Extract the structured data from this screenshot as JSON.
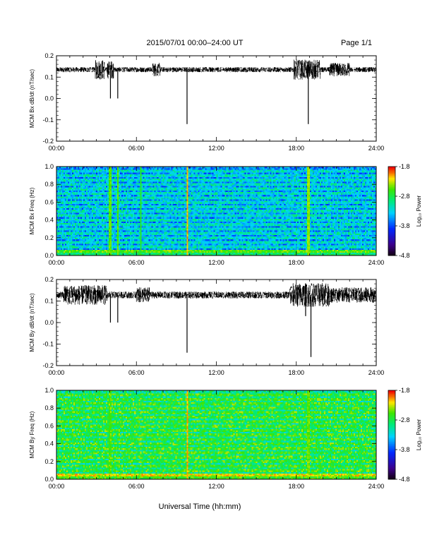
{
  "header": {
    "title": "2015/07/01   00:00–24:00 UT",
    "page": "Page 1/1"
  },
  "xaxis_title": "Universal Time (hh:mm)",
  "chart_data": [
    {
      "type": "line",
      "ylabel": "MCM Bx dB/dt (nT/sec)",
      "xlim": [
        0,
        24
      ],
      "ylim": [
        -0.2,
        0.2
      ],
      "x_tick_labels": [
        "00:00",
        "06:00",
        "12:00",
        "18:00",
        "24:00"
      ],
      "y_tick_labels": [
        "-0.2",
        "-0.1",
        "0.0",
        "0.1",
        "0.2"
      ],
      "baseline": 0.135,
      "noise_amplitude": 0.012,
      "bursts": [
        {
          "from": 2.9,
          "to": 3.6,
          "amp": 0.035
        },
        {
          "from": 3.8,
          "to": 4.3,
          "amp": 0.03
        },
        {
          "from": 7.2,
          "to": 7.8,
          "amp": 0.02
        },
        {
          "from": 17.8,
          "to": 19.8,
          "amp": 0.035
        },
        {
          "from": 20.5,
          "to": 22.0,
          "amp": 0.02
        }
      ],
      "spikes": [
        {
          "t": 4.05,
          "min": 0.0
        },
        {
          "t": 4.6,
          "min": 0.0
        },
        {
          "t": 9.8,
          "min": -0.12
        },
        {
          "t": 18.9,
          "min": -0.12
        }
      ]
    },
    {
      "type": "heatmap",
      "ylabel": "MCM Bx Freq (Hz)",
      "xlim": [
        0,
        24
      ],
      "ylim": [
        0,
        1.0
      ],
      "x_tick_labels": [
        "00:00",
        "06:00",
        "12:00",
        "18:00",
        "24:00"
      ],
      "y_tick_labels": [
        "0.0",
        "0.2",
        "0.4",
        "0.6",
        "0.8",
        "1.0"
      ],
      "colorbar": {
        "label": "Log₁₀ Power",
        "min": -4.8,
        "max": -1.8,
        "tick_labels": [
          "-4.8",
          "-3.8",
          "-2.8",
          "-1.8"
        ]
      },
      "background_level": -3.55,
      "low_freq_level": -2.9,
      "harmonic_lines_hz": [
        0.05,
        0.1,
        0.15,
        0.2,
        0.25,
        0.3,
        0.35,
        0.4,
        0.45,
        0.5,
        0.55,
        0.6,
        0.65,
        0.7,
        0.75,
        0.8,
        0.85,
        0.9,
        0.95
      ],
      "vertical_features": [
        {
          "t": 4.05,
          "level": -2.4
        },
        {
          "t": 4.6,
          "level": -2.4
        },
        {
          "t": 6.3,
          "level": -2.6
        },
        {
          "t": 9.8,
          "level": -2.0
        },
        {
          "t": 18.9,
          "level": -2.3
        }
      ]
    },
    {
      "type": "line",
      "ylabel": "MCM By dB/dt (nT/sec)",
      "xlim": [
        0,
        24
      ],
      "ylim": [
        -0.2,
        0.2
      ],
      "x_tick_labels": [
        "00:00",
        "06:00",
        "12:00",
        "18:00",
        "24:00"
      ],
      "y_tick_labels": [
        "-0.2",
        "-0.1",
        "0.0",
        "0.1",
        "0.2"
      ],
      "baseline": 0.128,
      "noise_amplitude": 0.016,
      "bursts": [
        {
          "from": 0.5,
          "to": 3.8,
          "amp": 0.03
        },
        {
          "from": 6.0,
          "to": 7.0,
          "amp": 0.02
        },
        {
          "from": 17.5,
          "to": 20.5,
          "amp": 0.04
        },
        {
          "from": 20.5,
          "to": 24.0,
          "amp": 0.02
        }
      ],
      "spikes": [
        {
          "t": 4.05,
          "min": 0.0
        },
        {
          "t": 4.6,
          "min": 0.0
        },
        {
          "t": 9.8,
          "min": -0.14
        },
        {
          "t": 18.7,
          "min": 0.03
        },
        {
          "t": 19.1,
          "min": -0.16
        }
      ]
    },
    {
      "type": "heatmap",
      "ylabel": "MCM By Freq (Hz)",
      "xlim": [
        0,
        24
      ],
      "ylim": [
        0,
        1.0
      ],
      "x_tick_labels": [
        "00:00",
        "06:00",
        "12:00",
        "18:00",
        "24:00"
      ],
      "y_tick_labels": [
        "0.0",
        "0.2",
        "0.4",
        "0.6",
        "0.8",
        "1.0"
      ],
      "colorbar": {
        "label": "Log₁₀ Power",
        "min": -4.8,
        "max": -1.8,
        "tick_labels": [
          "-4.8",
          "-3.8",
          "-2.8",
          "-1.8"
        ]
      },
      "background_level": -3.0,
      "low_freq_level": -2.6,
      "harmonic_lines_hz": [
        0.05,
        0.1,
        0.15,
        0.2,
        0.25,
        0.3,
        0.35,
        0.4,
        0.45,
        0.5,
        0.55,
        0.6,
        0.65,
        0.7,
        0.75,
        0.8,
        0.85,
        0.9,
        0.95
      ],
      "vertical_features": [
        {
          "t": 4.05,
          "level": -2.5
        },
        {
          "t": 9.8,
          "level": -2.0
        },
        {
          "t": 18.9,
          "level": -2.4
        }
      ]
    }
  ]
}
